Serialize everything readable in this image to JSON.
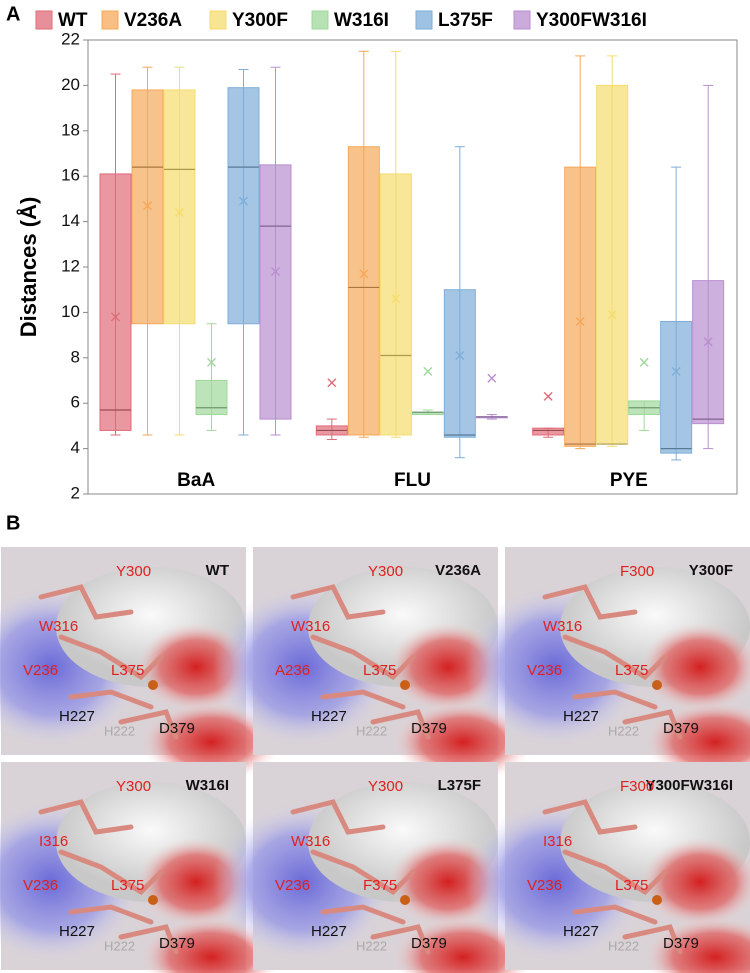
{
  "panel_labels": [
    "A",
    "B"
  ],
  "chart_data": {
    "type": "box",
    "ylabel": "Distances (Å)",
    "categories": [
      "BaA",
      "FLU",
      "PYE"
    ],
    "ylim": [
      2,
      22
    ],
    "yticks": [
      2,
      4,
      6,
      8,
      10,
      12,
      14,
      16,
      18,
      20,
      22
    ],
    "grid": false,
    "legend": "top",
    "series": [
      {
        "name": "WT",
        "color": "#e06b77",
        "values": [
          {
            "min": 4.6,
            "q1": 4.8,
            "median": 5.7,
            "q3": 16.1,
            "max": 20.5,
            "mean": 9.8
          },
          {
            "min": 4.4,
            "q1": 4.6,
            "median": 4.8,
            "q3": 5.0,
            "max": 5.3,
            "mean": 6.9
          },
          {
            "min": 4.5,
            "q1": 4.6,
            "median": 4.8,
            "q3": 4.9,
            "max": 4.9,
            "mean": 6.3
          }
        ]
      },
      {
        "name": "V236A",
        "color": "#f5a85a",
        "values": [
          {
            "min": 4.6,
            "q1": 9.5,
            "median": 16.4,
            "q3": 19.8,
            "max": 20.8,
            "mean": 14.7
          },
          {
            "min": 4.5,
            "q1": 4.6,
            "median": 11.1,
            "q3": 17.3,
            "max": 21.5,
            "mean": 11.7
          },
          {
            "min": 4.0,
            "q1": 4.1,
            "median": 4.2,
            "q3": 16.4,
            "max": 21.3,
            "mean": 9.6
          }
        ]
      },
      {
        "name": "Y300F",
        "color": "#f5dc6e",
        "values": [
          {
            "min": 4.6,
            "q1": 9.5,
            "median": 16.3,
            "q3": 19.8,
            "max": 20.8,
            "mean": 14.4
          },
          {
            "min": 4.5,
            "q1": 4.6,
            "median": 8.1,
            "q3": 16.1,
            "max": 21.5,
            "mean": 10.6
          },
          {
            "min": 4.1,
            "q1": 4.2,
            "median": 4.2,
            "q3": 20.0,
            "max": 21.3,
            "mean": 9.9
          }
        ]
      },
      {
        "name": "W316I",
        "color": "#9fd89a",
        "values": [
          {
            "min": 4.8,
            "q1": 5.5,
            "median": 5.8,
            "q3": 7.0,
            "max": 9.5,
            "mean": 7.8
          },
          {
            "min": 5.5,
            "q1": 5.5,
            "median": 5.6,
            "q3": 5.6,
            "max": 5.7,
            "mean": 7.4
          },
          {
            "min": 4.8,
            "q1": 5.5,
            "median": 5.8,
            "q3": 6.1,
            "max": 6.1,
            "mean": 7.8
          }
        ]
      },
      {
        "name": "L375F",
        "color": "#7eaed9",
        "values": [
          {
            "min": 4.6,
            "q1": 9.5,
            "median": 16.4,
            "q3": 19.9,
            "max": 20.7,
            "mean": 14.9
          },
          {
            "min": 3.6,
            "q1": 4.5,
            "median": 4.6,
            "q3": 11.0,
            "max": 17.3,
            "mean": 8.1
          },
          {
            "min": 3.5,
            "q1": 3.8,
            "median": 4.0,
            "q3": 9.6,
            "max": 16.4,
            "mean": 7.4
          }
        ]
      },
      {
        "name": "Y300FW316I",
        "color": "#b98ed0",
        "values": [
          {
            "min": 4.6,
            "q1": 5.3,
            "median": 13.8,
            "q3": 16.5,
            "max": 20.8,
            "mean": 11.8
          },
          {
            "min": 5.3,
            "q1": 5.4,
            "median": 5.4,
            "q3": 5.4,
            "max": 5.5,
            "mean": 7.1
          },
          {
            "min": 4.0,
            "q1": 5.1,
            "median": 5.3,
            "q3": 11.4,
            "max": 20.0,
            "mean": 8.7
          }
        ]
      }
    ]
  },
  "panel_b": {
    "panels": [
      {
        "title": "WT",
        "labels": [
          "Y300",
          "W316",
          "V236",
          "L375",
          "H227",
          "H222",
          "D379"
        ]
      },
      {
        "title": "V236A",
        "labels": [
          "Y300",
          "W316",
          "A236",
          "L375",
          "H227",
          "H222",
          "D379"
        ]
      },
      {
        "title": "Y300F",
        "labels": [
          "F300",
          "W316",
          "V236",
          "L375",
          "H227",
          "H222",
          "D379"
        ]
      },
      {
        "title": "W316I",
        "labels": [
          "Y300",
          "I316",
          "V236",
          "L375",
          "H227",
          "H222",
          "D379"
        ]
      },
      {
        "title": "L375F",
        "labels": [
          "Y300",
          "W316",
          "V236",
          "F375",
          "H227",
          "H222",
          "D379"
        ]
      },
      {
        "title": "Y300FW316I",
        "labels": [
          "F300",
          "I316",
          "V236",
          "L375",
          "H227",
          "H222",
          "D379"
        ]
      }
    ]
  }
}
